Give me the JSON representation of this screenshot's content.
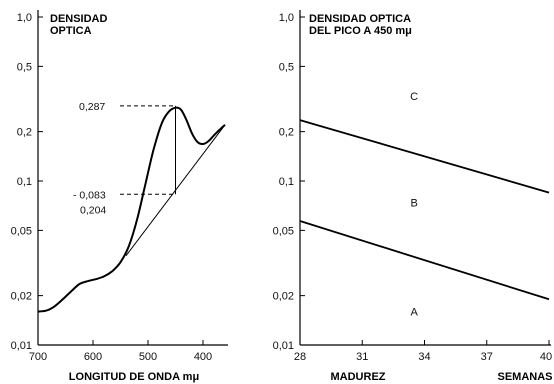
{
  "chart_data": [
    {
      "type": "line",
      "title_lines": [
        "DENSIDAD",
        "OPTICA"
      ],
      "xlabel": "LONGITUD DE ONDA mμ",
      "ylabel": "",
      "x_scale": "reversed",
      "y_scale": "log",
      "xlim": [
        700,
        350
      ],
      "ylim": [
        0.01,
        1.0
      ],
      "x_ticks": [
        700,
        600,
        500,
        400
      ],
      "y_ticks": [
        {
          "value": 1.0,
          "label": "1,0"
        },
        {
          "value": 0.5,
          "label": "0,5"
        },
        {
          "value": 0.2,
          "label": "0,2"
        },
        {
          "value": 0.1,
          "label": "0,1"
        },
        {
          "value": 0.05,
          "label": "0,05"
        },
        {
          "value": 0.02,
          "label": "0,02"
        },
        {
          "value": 0.01,
          "label": "0,01"
        }
      ],
      "series": [
        {
          "role": "spectrum",
          "x": [
            700,
            685,
            670,
            655,
            640,
            625,
            610,
            595,
            580,
            565,
            550,
            535,
            520,
            505,
            490,
            475,
            462,
            450,
            440,
            430,
            420,
            410,
            400,
            390,
            380,
            370,
            360
          ],
          "y": [
            0.016,
            0.0162,
            0.0172,
            0.019,
            0.0212,
            0.0235,
            0.0245,
            0.0252,
            0.0262,
            0.0282,
            0.032,
            0.04,
            0.058,
            0.095,
            0.155,
            0.225,
            0.265,
            0.28,
            0.272,
            0.235,
            0.195,
            0.173,
            0.168,
            0.175,
            0.19,
            0.205,
            0.22
          ]
        },
        {
          "role": "baseline",
          "x": [
            540,
            360
          ],
          "y": [
            0.035,
            0.22
          ]
        }
      ],
      "peak_x": 450,
      "annotations": [
        {
          "text": "0,287",
          "y": 0.287
        },
        {
          "text": "- 0,083",
          "y": 0.083
        },
        {
          "text": "0,204"
        }
      ]
    },
    {
      "type": "line",
      "title_lines": [
        "DENSIDAD OPTICA",
        "DEL PICO A 450 mμ"
      ],
      "xlabel": "MADUREZ",
      "xlabel_right": "SEMANAS",
      "y_scale": "log",
      "xlim": [
        28,
        40
      ],
      "ylim": [
        0.01,
        1.0
      ],
      "x_ticks": [
        28,
        31,
        34,
        37,
        40
      ],
      "y_ticks": [
        {
          "value": 1.0,
          "label": "1,0"
        },
        {
          "value": 0.5,
          "label": "0,5"
        },
        {
          "value": 0.2,
          "label": "0,2"
        },
        {
          "value": 0.1,
          "label": "0,1"
        },
        {
          "value": 0.05,
          "label": "0,05"
        },
        {
          "value": 0.02,
          "label": "0,02"
        },
        {
          "value": 0.01,
          "label": "0,01"
        }
      ],
      "series": [
        {
          "role": "upper-boundary",
          "x": [
            28,
            40
          ],
          "y": [
            0.235,
            0.085
          ]
        },
        {
          "role": "lower-boundary",
          "x": [
            28,
            40
          ],
          "y": [
            0.057,
            0.019
          ]
        }
      ],
      "zones": [
        {
          "label": "C",
          "x": 33.5,
          "y": 0.33
        },
        {
          "label": "B",
          "x": 33.5,
          "y": 0.074
        },
        {
          "label": "A",
          "x": 33.5,
          "y": 0.016
        }
      ]
    }
  ]
}
